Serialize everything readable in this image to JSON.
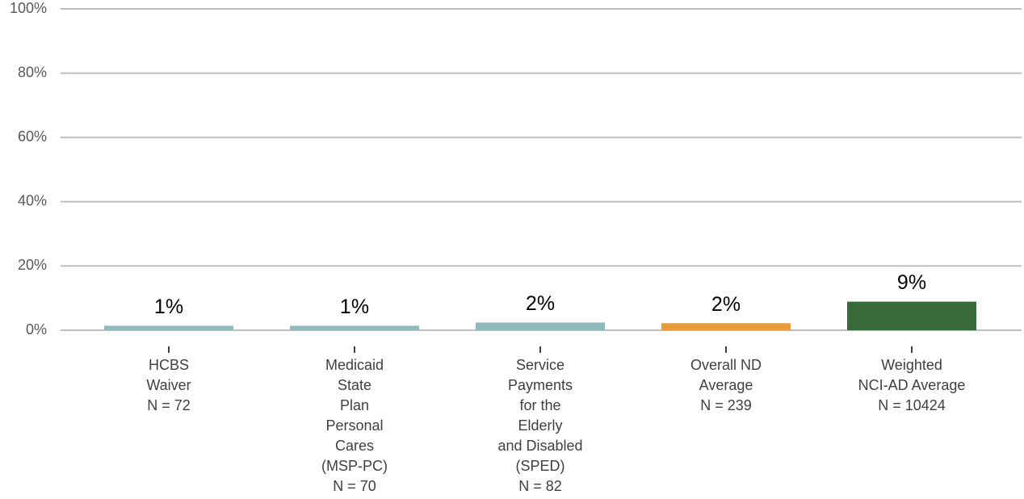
{
  "chart_data": {
    "type": "bar",
    "categories": [
      [
        "HCBS",
        "Waiver",
        "N = 72"
      ],
      [
        "Medicaid",
        "State",
        "Plan",
        "Personal",
        "Cares",
        "(MSP-PC)",
        "N = 70"
      ],
      [
        "Service",
        "Payments",
        "for the",
        "Elderly",
        "and Disabled",
        "(SPED)",
        "N = 82"
      ],
      [
        "Overall ND",
        "Average",
        "N = 239"
      ],
      [
        "Weighted",
        "NCI-AD Average",
        "N = 10424"
      ]
    ],
    "values": [
      1.4,
      1.4,
      2.4,
      2.2,
      8.9
    ],
    "value_labels": [
      "1%",
      "1%",
      "2%",
      "2%",
      "9%"
    ],
    "colors": [
      "#8fbcbb",
      "#8fbcbb",
      "#8fbcbb",
      "#e99b3e",
      "#386b39"
    ],
    "ylim": [
      0,
      100
    ],
    "yticks": [
      {
        "value": 0,
        "label": "0%"
      },
      {
        "value": 20,
        "label": "20%"
      },
      {
        "value": 40,
        "label": "40%"
      },
      {
        "value": 60,
        "label": "60%"
      },
      {
        "value": 80,
        "label": "80%"
      },
      {
        "value": 100,
        "label": "100%"
      }
    ],
    "grid": true
  }
}
